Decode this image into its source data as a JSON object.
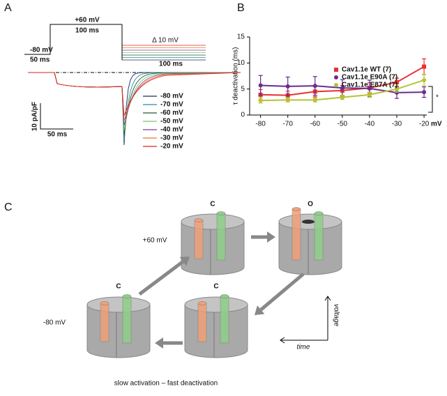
{
  "panel_a": {
    "label": "A",
    "protocol": {
      "hold": "-80 mV",
      "hold_time": "50 ms",
      "step": "+60 mV",
      "step_time": "100 ms",
      "delta": "Δ 10 mV",
      "tail_time": "100 ms"
    },
    "scale": {
      "current": "10 pA/pF",
      "time": "50 ms"
    },
    "legend": [
      {
        "name": "-80 mV",
        "color": "#1f2a5a"
      },
      {
        "name": "-70 mV",
        "color": "#2a8aa8"
      },
      {
        "name": "-60 mV",
        "color": "#1e5a2a"
      },
      {
        "name": "-50 mV",
        "color": "#7dc46a"
      },
      {
        "name": "-40 mV",
        "color": "#7a3c9a"
      },
      {
        "name": "-30 mV",
        "color": "#e8742a"
      },
      {
        "name": "-20 mV",
        "color": "#e02020"
      }
    ]
  },
  "chart_data": {
    "type": "line",
    "label": "B",
    "ylabel": "τ deactivation (ms)",
    "xlabel": "mV",
    "x": [
      -80,
      -70,
      -60,
      -50,
      -40,
      -30,
      -20
    ],
    "xlim": [
      -84,
      -19
    ],
    "xticks": [
      -80,
      -70,
      -60,
      -50,
      -40,
      -30,
      -20
    ],
    "ylim": [
      0,
      15
    ],
    "yticks": [
      0,
      5,
      10,
      15
    ],
    "annotation": "*",
    "series": [
      {
        "name": "Cav1.1e WT (7)",
        "color": "#e8312f",
        "marker": "square",
        "values": [
          3.9,
          3.8,
          4.5,
          4.7,
          5.2,
          6.3,
          9.3
        ],
        "errors": [
          1.0,
          0.8,
          1.0,
          1.0,
          1.0,
          0.8,
          1.5
        ]
      },
      {
        "name": "Cav1.1e E90A (7)",
        "color": "#6a2c91",
        "marker": "circle",
        "values": [
          5.7,
          5.5,
          5.6,
          5.2,
          5.1,
          4.3,
          4.4
        ],
        "errors": [
          1.9,
          1.8,
          1.8,
          1.6,
          1.6,
          1.1,
          1.0
        ]
      },
      {
        "name": "Cav1.1e E87A (7)",
        "color": "#b5c334",
        "marker": "circle",
        "values": [
          2.8,
          2.9,
          2.9,
          3.4,
          3.9,
          5.0,
          6.7
        ],
        "errors": [
          0.5,
          0.4,
          0.4,
          0.4,
          0.5,
          0.6,
          1.1
        ]
      }
    ]
  },
  "panel_c": {
    "label": "C",
    "states": [
      "C",
      "O",
      "C",
      "C"
    ],
    "voltages": [
      "+60 mV",
      "-80 mV"
    ],
    "axes": {
      "time": "time",
      "voltage": "voltage"
    },
    "caption": "slow activation – fast deactivation"
  }
}
